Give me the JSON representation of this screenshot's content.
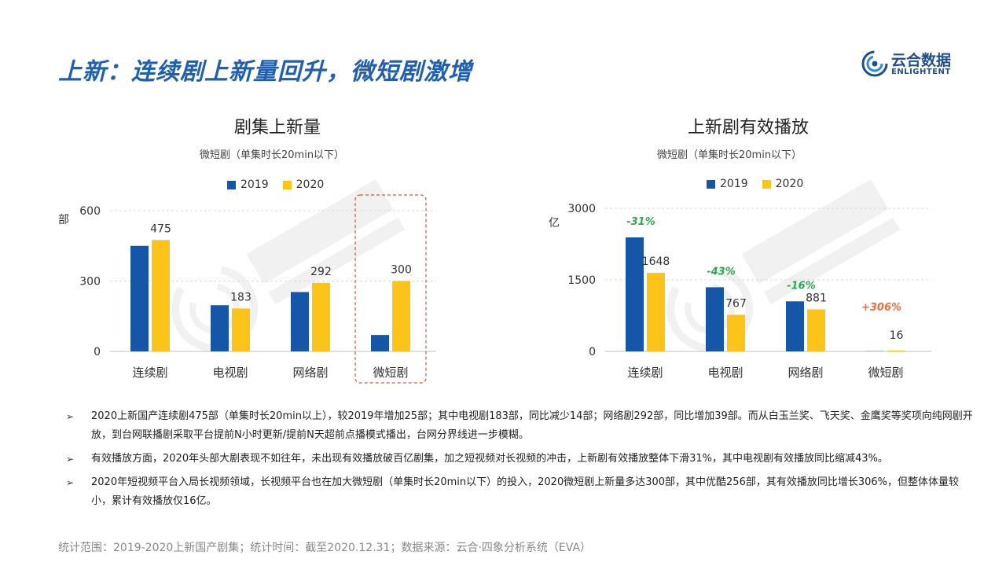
{
  "header": {
    "title": "上新：连续剧上新量回升，微短剧激增",
    "logo_cn": "云合数据",
    "logo_en": "ENLIGHTENT"
  },
  "colors": {
    "series_2019": "#1656a8",
    "series_2020": "#fcc419",
    "title": "#1f5fb3",
    "grid": "#d9d9d9",
    "change_negative": "#2fa84f",
    "change_positive": "#f26b3a",
    "highlight_border": "#d35a3a"
  },
  "chart_data": [
    {
      "type": "bar",
      "title": "剧集上新量",
      "subtitle": "微短剧（单集时长20min以下）",
      "ylabel": "部",
      "ylim": [
        0,
        600
      ],
      "yticks": [
        "0",
        "300",
        "600"
      ],
      "categories": [
        "连续剧",
        "电视剧",
        "网络剧",
        "微短剧"
      ],
      "series": [
        {
          "name": "2019",
          "values": [
            450,
            197,
            253,
            70
          ]
        },
        {
          "name": "2020",
          "values": [
            475,
            183,
            292,
            300
          ]
        }
      ],
      "data_labels_2020": [
        "475",
        "183",
        "292",
        "300"
      ],
      "grid": true,
      "legend": "top",
      "highlight_category": "微短剧"
    },
    {
      "type": "bar",
      "title": "上新剧有效播放",
      "subtitle": "微短剧（单集时长20min以下）",
      "ylabel": "亿",
      "ylim": [
        0,
        3000
      ],
      "yticks": [
        "0",
        "1500",
        "3000"
      ],
      "categories": [
        "连续剧",
        "电视剧",
        "网络剧",
        "微短剧"
      ],
      "series": [
        {
          "name": "2019",
          "values": [
            2390,
            1345,
            1050,
            4
          ]
        },
        {
          "name": "2020",
          "values": [
            1648,
            767,
            881,
            16
          ]
        }
      ],
      "data_labels_2020": [
        "1648",
        "767",
        "881",
        "16"
      ],
      "change_labels": [
        "-31%",
        "-43%",
        "-16%",
        "+306%"
      ],
      "grid": true,
      "legend": "top"
    }
  ],
  "notes": [
    "2020上新国产连续剧475部（单集时长20min以上），较2019年增加25部；其中电视剧183部，同比减少14部；网络剧292部，同比增加39部。而从白玉兰奖、飞天奖、金鹰奖等奖项向纯网剧开放，到台网联播剧采取平台提前N小时更新/提前N天超前点播模式播出，台网分界线进一步模糊。",
    "有效播放方面，2020年头部大剧表现不如往年，未出现有效播放破百亿剧集，加之短视频对长视频的冲击，上新剧有效播放整体下滑31%，其中电视剧有效播放同比缩减43%。",
    "2020年短视频平台入局长视频领域，长视频平台也在加大微短剧（单集时长20min以下）的投入，2020微短剧上新量多达300部，其中优酷256部，其有效播放同比增长306%，但整体体量较小，累计有效播放仅16亿。"
  ],
  "source": "统计范围：2019-2020上新国产剧集；统计时间：截至2020.12.31；数据来源：云合·四象分析系统（EVA）"
}
